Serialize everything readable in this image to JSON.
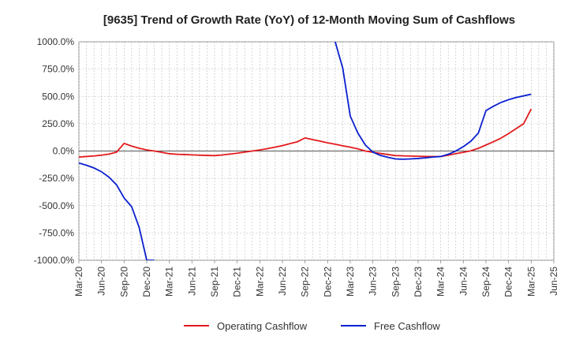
{
  "chart_data": {
    "type": "line",
    "title": "[9635]  Trend of Growth Rate (YoY) of 12-Month Moving Sum of Cashflows",
    "xlabel": "",
    "ylabel": "",
    "ylim": [
      -1000,
      1000
    ],
    "yticks": [
      1000,
      750,
      500,
      250,
      0,
      -250,
      -500,
      -750,
      -1000
    ],
    "ytick_labels": [
      "1000.0%",
      "750.0%",
      "500.0%",
      "250.0%",
      "0.0%",
      "-250.0%",
      "-500.0%",
      "-750.0%",
      "-1000.0%"
    ],
    "x_start": "Mar-20",
    "xtick_labels": [
      "Mar-20",
      "Jun-20",
      "Sep-20",
      "Dec-20",
      "Mar-21",
      "Jun-21",
      "Sep-21",
      "Dec-21",
      "Mar-22",
      "Jun-22",
      "Sep-22",
      "Dec-22",
      "Mar-23",
      "Jun-23",
      "Sep-23",
      "Dec-23",
      "Mar-24",
      "Jun-24",
      "Sep-24",
      "Dec-24",
      "Mar-25",
      "Jun-25"
    ],
    "grid": true,
    "legend_position": "bottom",
    "series": [
      {
        "name": "Operating Cashflow",
        "color": "#e31a1c",
        "x": [
          "Mar-20",
          "Apr-20",
          "May-20",
          "Jun-20",
          "Jul-20",
          "Aug-20",
          "Sep-20",
          "Oct-20",
          "Nov-20",
          "Dec-20",
          "Jan-21",
          "Feb-21",
          "Mar-21",
          "Apr-21",
          "May-21",
          "Jun-21",
          "Jul-21",
          "Aug-21",
          "Sep-21",
          "Oct-21",
          "Nov-21",
          "Dec-21",
          "Jan-22",
          "Feb-22",
          "Mar-22",
          "Apr-22",
          "May-22",
          "Jun-22",
          "Jul-22",
          "Aug-22",
          "Sep-22",
          "Oct-22",
          "Nov-22",
          "Dec-22",
          "Jan-23",
          "Feb-23",
          "Mar-23",
          "Apr-23",
          "May-23",
          "Jun-23",
          "Jul-23",
          "Aug-23",
          "Sep-23",
          "Oct-23",
          "Nov-23",
          "Dec-23",
          "Jan-24",
          "Feb-24",
          "Mar-24",
          "Apr-24",
          "May-24",
          "Jun-24",
          "Jul-24",
          "Aug-24",
          "Sep-24",
          "Oct-24",
          "Nov-24",
          "Dec-24",
          "Jan-25",
          "Feb-25",
          "Mar-25"
        ],
        "values": [
          -55,
          -50,
          -45,
          -38,
          -28,
          -10,
          70,
          45,
          25,
          10,
          0,
          -12,
          -25,
          -30,
          -32,
          -35,
          -38,
          -40,
          -42,
          -36,
          -28,
          -20,
          -10,
          0,
          10,
          22,
          35,
          50,
          68,
          85,
          120,
          105,
          90,
          75,
          62,
          48,
          35,
          20,
          0,
          -12,
          -22,
          -32,
          -42,
          -44,
          -46,
          -48,
          -50,
          -51,
          -50,
          -38,
          -24,
          -12,
          2,
          25,
          55,
          85,
          118,
          160,
          205,
          250,
          385
        ]
      },
      {
        "name": "Free Cashflow",
        "color": "#0a1fcf",
        "x": [
          "Mar-20",
          "Apr-20",
          "May-20",
          "Jun-20",
          "Jul-20",
          "Aug-20",
          "Sep-20",
          "Oct-20",
          "Nov-20",
          "Dec-20",
          "Jan-21",
          "null",
          "Jan-23",
          "Feb-23",
          "Mar-23",
          "Apr-23",
          "May-23",
          "Jun-23",
          "Jul-23",
          "Aug-23",
          "Sep-23",
          "Oct-23",
          "Nov-23",
          "Dec-23",
          "Jan-24",
          "Feb-24",
          "Mar-24",
          "Apr-24",
          "May-24",
          "Jun-24",
          "Jul-24",
          "Aug-24",
          "Sep-24",
          "Oct-24",
          "Nov-24",
          "Dec-24",
          "Jan-25",
          "Feb-25",
          "Mar-25"
        ],
        "values": [
          -110,
          -130,
          -155,
          -190,
          -240,
          -310,
          -430,
          -510,
          -700,
          -1000,
          -1000,
          null,
          1000,
          760,
          320,
          165,
          55,
          -10,
          -40,
          -58,
          -72,
          -75,
          -72,
          -68,
          -62,
          -55,
          -50,
          -30,
          0,
          40,
          90,
          165,
          370,
          410,
          445,
          470,
          490,
          505,
          520
        ]
      }
    ]
  }
}
